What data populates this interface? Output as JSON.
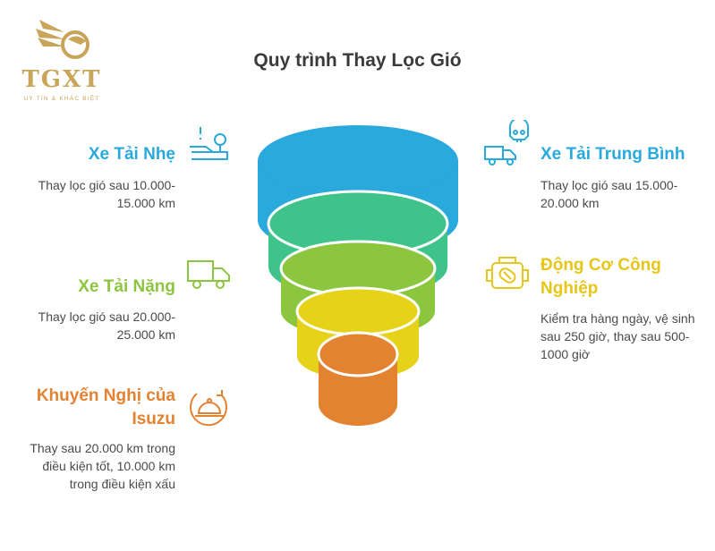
{
  "logo": {
    "brand": "TGXT",
    "tagline": "UY TÍN & KHÁC BIỆT"
  },
  "title": "Quy trình Thay Lọc Gió",
  "stages": {
    "light": {
      "heading": "Xe Tải Nhẹ",
      "description": "Thay lọc gió sau 10.000-15.000 km",
      "color": "#29a9dc",
      "icon": "dashboard-gauge-icon"
    },
    "medium": {
      "heading": "Xe Tải Trung Bình",
      "description": "Thay lọc gió sau 15.000-20.000 km",
      "color": "#29a9dc",
      "icon": "truck-skull-icon"
    },
    "heavy": {
      "heading": "Xe Tải Nặng",
      "description": "Thay lọc gió sau 20.000-25.000 km",
      "color": "#8cc63f",
      "icon": "truck-icon"
    },
    "industrial": {
      "heading": "Động Cơ Công Nghiệp",
      "description": "Kiểm tra hàng ngày, vệ sinh sau 250 giờ, thay sau 500-1000 giờ",
      "color": "#e6c619",
      "icon": "engine-icon"
    },
    "isuzu": {
      "heading": "Khuyến Nghị của Isuzu",
      "description": "Thay sau 20.000 km trong điều kiện tốt, 10.000 km trong điều kiện xấu",
      "color": "#e38231",
      "icon": "service-cloche-icon"
    }
  },
  "funnel_colors": [
    "#29a9dc",
    "#3ec48a",
    "#8cc63f",
    "#e6d219",
    "#e38231"
  ]
}
